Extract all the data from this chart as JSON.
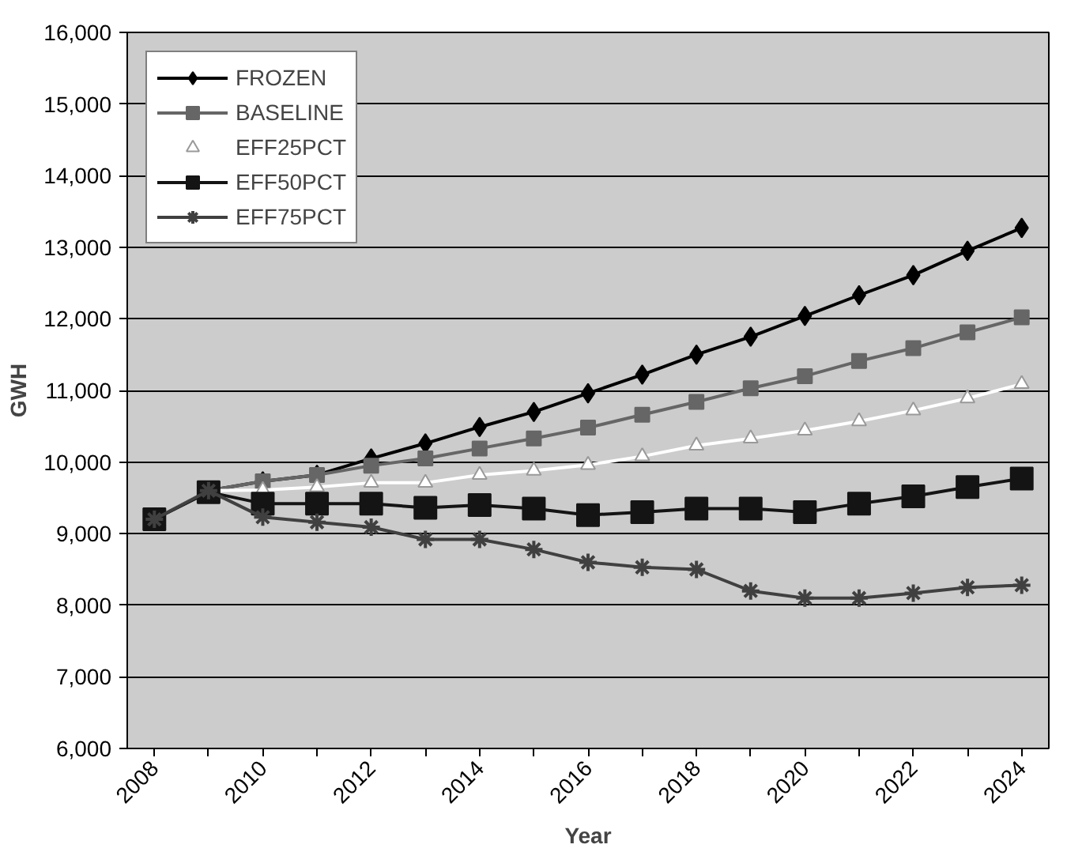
{
  "chart_data": {
    "type": "line",
    "xlabel": "Year",
    "ylabel": "GWH",
    "categories": [
      "2008",
      null,
      "2010",
      null,
      "2012",
      null,
      "2014",
      null,
      "2016",
      null,
      "2018",
      null,
      "2020",
      null,
      "2022",
      null,
      "2024"
    ],
    "ylim": [
      6000,
      16000
    ],
    "yticks": [
      {
        "value": 6000,
        "label": "6,000"
      },
      {
        "value": 7000,
        "label": "7,000"
      },
      {
        "value": 8000,
        "label": "8,000"
      },
      {
        "value": 9000,
        "label": "9,000"
      },
      {
        "value": 10000,
        "label": "10,000"
      },
      {
        "value": 11000,
        "label": "11,000"
      },
      {
        "value": 12000,
        "label": "12,000"
      },
      {
        "value": 13000,
        "label": "13,000"
      },
      {
        "value": 14000,
        "label": "14,000"
      },
      {
        "value": 15000,
        "label": "15,000"
      },
      {
        "value": 16000,
        "label": "16,000"
      }
    ],
    "grid": "y",
    "legend": "top left",
    "line_style": "solid",
    "series": [
      {
        "name": "FROZEN",
        "color": "#000000",
        "marker": "diamond",
        "values": [
          9200,
          9600,
          9730,
          9820,
          10050,
          10260,
          10490,
          10700,
          10960,
          11220,
          11500,
          11750,
          12040,
          12330,
          12610,
          12950,
          13270
        ]
      },
      {
        "name": "BASELINE",
        "color": "#666666",
        "marker": "square",
        "values": [
          9200,
          9600,
          9730,
          9820,
          9950,
          10050,
          10190,
          10330,
          10480,
          10660,
          10840,
          11030,
          11200,
          11410,
          11590,
          11810,
          12020
        ]
      },
      {
        "name": "EFF25PCT",
        "color": "#ffffff",
        "marker": "triangle",
        "values": [
          9200,
          9600,
          9610,
          9650,
          9710,
          9710,
          9820,
          9880,
          9960,
          10080,
          10230,
          10330,
          10440,
          10570,
          10720,
          10890,
          11090
        ]
      },
      {
        "name": "EFF50PCT",
        "color": "#141414",
        "marker": "square",
        "values": [
          9200,
          9580,
          9420,
          9420,
          9420,
          9360,
          9400,
          9350,
          9260,
          9300,
          9350,
          9350,
          9300,
          9420,
          9520,
          9650,
          9770
        ]
      },
      {
        "name": "EFF75PCT",
        "color": "#404040",
        "marker": "cross",
        "values": [
          9200,
          9600,
          9230,
          9160,
          9090,
          8920,
          8920,
          8780,
          8600,
          8530,
          8500,
          8200,
          8100,
          8100,
          8170,
          8250,
          8280
        ]
      }
    ]
  }
}
